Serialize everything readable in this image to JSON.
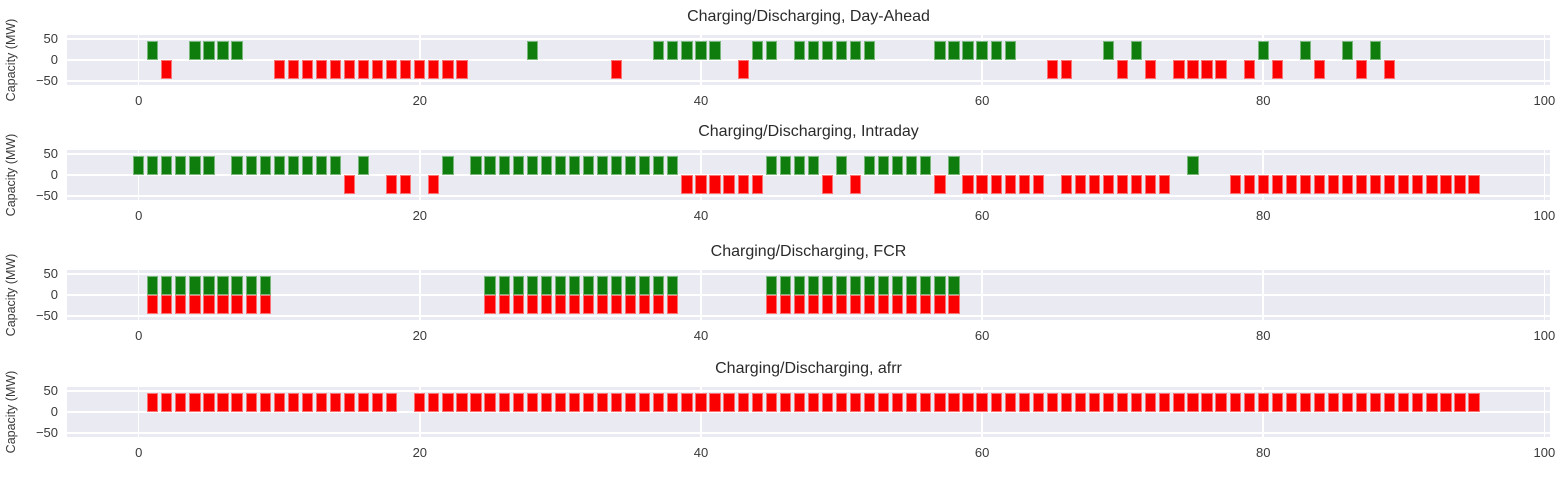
{
  "figure": {
    "background": "#ffffff",
    "plot_background": "#eaeaf2",
    "grid_color": "#ffffff",
    "text_color": "#262626",
    "charge_color": "#0e7d0e",
    "discharge_color": "#fb0000"
  },
  "chart_data": [
    {
      "type": "bar",
      "title": "Charging/Discharging, Day-Ahead",
      "ylabel": "Capacity (MW)",
      "xlabel": "",
      "grid": true,
      "xlim": [
        -5.1,
        100.4
      ],
      "ylim": [
        -60,
        60
      ],
      "bar_width_hours": 0.8,
      "xticks": [
        {
          "value": 0,
          "label": "0"
        },
        {
          "value": 20,
          "label": "20"
        },
        {
          "value": 40,
          "label": "40"
        },
        {
          "value": 60,
          "label": "60"
        },
        {
          "value": 80,
          "label": "80"
        },
        {
          "value": 100,
          "label": "100"
        }
      ],
      "yticks": [
        {
          "value": 50,
          "label": "50"
        },
        {
          "value": 0,
          "label": "0"
        },
        {
          "value": -50,
          "label": "−50"
        }
      ],
      "series": [
        {
          "name": "charging",
          "direction": "up",
          "value_mw": 45,
          "color": "#0e7d0e",
          "hours": [
            1,
            4,
            5,
            6,
            7,
            28,
            37,
            38,
            39,
            40,
            41,
            44,
            45,
            47,
            48,
            49,
            50,
            51,
            52,
            57,
            58,
            59,
            60,
            61,
            62,
            69,
            71,
            80,
            83,
            86,
            88
          ]
        },
        {
          "name": "discharging",
          "direction": "down",
          "value_mw": -45,
          "color": "#fb0000",
          "hours": [
            2,
            10,
            11,
            12,
            13,
            14,
            15,
            16,
            17,
            18,
            19,
            20,
            21,
            22,
            23,
            34,
            43,
            65,
            66,
            70,
            72,
            74,
            75,
            76,
            77,
            79,
            81,
            84,
            87,
            89
          ]
        }
      ]
    },
    {
      "type": "bar",
      "title": "Charging/Discharging, Intraday",
      "ylabel": "Capacity (MW)",
      "xlabel": "",
      "grid": true,
      "xlim": [
        -5.1,
        100.4
      ],
      "ylim": [
        -60,
        60
      ],
      "bar_width_hours": 0.8,
      "xticks": [
        {
          "value": 0,
          "label": "0"
        },
        {
          "value": 20,
          "label": "20"
        },
        {
          "value": 40,
          "label": "40"
        },
        {
          "value": 60,
          "label": "60"
        },
        {
          "value": 80,
          "label": "80"
        },
        {
          "value": 100,
          "label": "100"
        }
      ],
      "yticks": [
        {
          "value": 50,
          "label": "50"
        },
        {
          "value": 0,
          "label": "0"
        },
        {
          "value": -50,
          "label": "−50"
        }
      ],
      "series": [
        {
          "name": "charging",
          "direction": "up",
          "value_mw": 45,
          "color": "#0e7d0e",
          "hours": [
            0,
            1,
            2,
            3,
            4,
            5,
            7,
            8,
            9,
            10,
            11,
            12,
            13,
            14,
            16,
            22,
            24,
            25,
            26,
            27,
            28,
            29,
            30,
            31,
            32,
            33,
            34,
            35,
            36,
            37,
            38,
            45,
            46,
            47,
            48,
            50,
            52,
            53,
            54,
            55,
            56,
            58,
            75
          ]
        },
        {
          "name": "discharging",
          "direction": "down",
          "value_mw": -45,
          "color": "#fb0000",
          "hours": [
            15,
            18,
            19,
            21,
            39,
            40,
            41,
            42,
            43,
            44,
            49,
            51,
            57,
            59,
            60,
            61,
            62,
            63,
            64,
            66,
            67,
            68,
            69,
            70,
            71,
            72,
            73,
            78,
            79,
            80,
            81,
            82,
            83,
            84,
            85,
            86,
            87,
            88,
            89,
            90,
            91,
            92,
            93,
            94,
            95
          ]
        }
      ]
    },
    {
      "type": "bar",
      "title": "Charging/Discharging, FCR",
      "ylabel": "Capacity (MW)",
      "xlabel": "",
      "grid": true,
      "xlim": [
        -5.1,
        100.4
      ],
      "ylim": [
        -60,
        60
      ],
      "bar_width_hours": 0.8,
      "xticks": [
        {
          "value": 0,
          "label": "0"
        },
        {
          "value": 20,
          "label": "20"
        },
        {
          "value": 40,
          "label": "40"
        },
        {
          "value": 60,
          "label": "60"
        },
        {
          "value": 80,
          "label": "80"
        },
        {
          "value": 100,
          "label": "100"
        }
      ],
      "yticks": [
        {
          "value": 50,
          "label": "50"
        },
        {
          "value": 0,
          "label": "0"
        },
        {
          "value": -50,
          "label": "−50"
        }
      ],
      "series": [
        {
          "name": "charging",
          "direction": "up",
          "value_mw": 45,
          "color": "#0e7d0e",
          "hours": [
            1,
            2,
            3,
            4,
            5,
            6,
            7,
            8,
            9,
            25,
            26,
            27,
            28,
            29,
            30,
            31,
            32,
            33,
            34,
            35,
            36,
            37,
            38,
            45,
            46,
            47,
            48,
            49,
            50,
            51,
            52,
            53,
            54,
            55,
            56,
            57,
            58
          ]
        },
        {
          "name": "discharging",
          "direction": "down",
          "value_mw": -45,
          "color": "#fb0000",
          "hours": [
            1,
            2,
            3,
            4,
            5,
            6,
            7,
            8,
            9,
            25,
            26,
            27,
            28,
            29,
            30,
            31,
            32,
            33,
            34,
            35,
            36,
            37,
            38,
            45,
            46,
            47,
            48,
            49,
            50,
            51,
            52,
            53,
            54,
            55,
            56,
            57,
            58
          ]
        }
      ]
    },
    {
      "type": "bar",
      "title": "Charging/Discharging, afrr",
      "ylabel": "Capacity (MW)",
      "xlabel": "",
      "grid": true,
      "xlim": [
        -5.1,
        100.4
      ],
      "ylim": [
        -60,
        60
      ],
      "bar_width_hours": 0.8,
      "xticks": [
        {
          "value": 0,
          "label": "0"
        },
        {
          "value": 20,
          "label": "20"
        },
        {
          "value": 40,
          "label": "40"
        },
        {
          "value": 60,
          "label": "60"
        },
        {
          "value": 80,
          "label": "80"
        },
        {
          "value": 100,
          "label": "100"
        }
      ],
      "yticks": [
        {
          "value": 50,
          "label": "50"
        },
        {
          "value": 0,
          "label": "0"
        },
        {
          "value": -50,
          "label": "−50"
        }
      ],
      "series": [
        {
          "name": "charging",
          "direction": "up",
          "value_mw": 45,
          "color": "#fb0000",
          "hours": [
            1,
            2,
            3,
            4,
            5,
            6,
            7,
            8,
            9,
            10,
            11,
            12,
            13,
            14,
            15,
            16,
            17,
            18,
            20,
            21,
            22,
            23,
            24,
            25,
            26,
            27,
            28,
            29,
            30,
            31,
            32,
            33,
            34,
            35,
            36,
            37,
            38,
            39,
            40,
            41,
            42,
            43,
            44,
            45,
            46,
            47,
            48,
            49,
            50,
            51,
            52,
            53,
            54,
            55,
            56,
            57,
            58,
            59,
            60,
            61,
            62,
            63,
            64,
            65,
            66,
            67,
            68,
            69,
            70,
            71,
            72,
            73,
            74,
            75,
            76,
            77,
            78,
            79,
            80,
            81,
            82,
            83,
            84,
            85,
            86,
            87,
            88,
            89,
            90,
            91,
            92,
            93,
            94,
            95
          ]
        }
      ]
    }
  ]
}
